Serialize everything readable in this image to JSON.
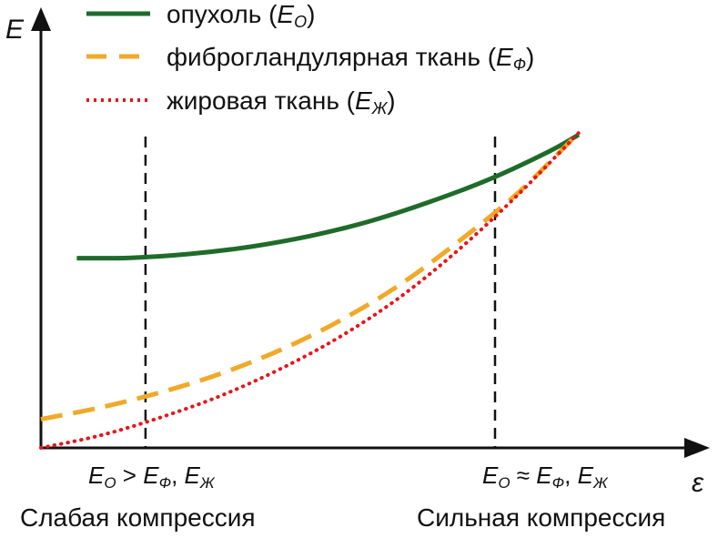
{
  "chart_data": {
    "type": "line",
    "title": "",
    "xlabel": "ε",
    "ylabel": "E",
    "xlim": [
      0,
      10
    ],
    "ylim": [
      0,
      10
    ],
    "grid": false,
    "legend_position": "top",
    "series": [
      {
        "name": "опухоль (EO)",
        "color": "#1e6b2a",
        "dash": "solid",
        "x": [
          0.6,
          1.5,
          2.5,
          3.5,
          4.5,
          5.5,
          6.5,
          7.5,
          8.5,
          9.0
        ],
        "y": [
          5.3,
          5.31,
          5.42,
          5.62,
          5.92,
          6.33,
          6.87,
          7.5,
          8.28,
          8.75
        ]
      },
      {
        "name": "фиброгландулярная ткань (EФ)",
        "color": "#f0a928",
        "dash": "dashed",
        "x": [
          0,
          1.0,
          2.0,
          3.0,
          4.0,
          5.0,
          6.0,
          7.0,
          8.0,
          9.0
        ],
        "y": [
          0.8,
          1.13,
          1.55,
          2.07,
          2.73,
          3.55,
          4.55,
          5.78,
          7.15,
          8.8
        ]
      },
      {
        "name": "жировая ткань (EЖ)",
        "color": "#e8141a",
        "dash": "dotted",
        "x": [
          0,
          1.0,
          2.0,
          3.0,
          4.0,
          5.0,
          6.0,
          7.0,
          8.0,
          9.0
        ],
        "y": [
          0.0,
          0.35,
          0.85,
          1.45,
          2.2,
          3.1,
          4.2,
          5.55,
          7.1,
          8.8
        ]
      }
    ],
    "reference_lines": [
      {
        "x": 1.75,
        "label": "EO > EФ, EЖ",
        "caption": "Слабая компрессия"
      },
      {
        "x": 7.6,
        "label": "EO ≈ EФ, EЖ",
        "caption": "Сильная компрессия"
      }
    ]
  },
  "legend": [
    {
      "text": "опухоль (",
      "sym": "E",
      "sub": "O",
      "close": ")"
    },
    {
      "text": "фиброгландулярная ткань (",
      "sym": "E",
      "sub": "Ф",
      "close": ")"
    },
    {
      "text": "жировая ткань (",
      "sym": "E",
      "sub": "Ж",
      "close": ")"
    }
  ],
  "annotations": {
    "weak": {
      "a": "E",
      "a_sub": "O",
      "op": " > ",
      "b": "E",
      "b_sub": "Ф",
      "sep": ", ",
      "c": "E",
      "c_sub": "Ж"
    },
    "strong": {
      "a": "E",
      "a_sub": "O",
      "op": " ≈ ",
      "b": "E",
      "b_sub": "Ф",
      "sep": ", ",
      "c": "E",
      "c_sub": "Ж"
    }
  },
  "captions": {
    "weak": "Слабая компрессия",
    "strong": "Сильная компрессия"
  },
  "axes": {
    "x_label": "ε",
    "y_label": "E"
  }
}
